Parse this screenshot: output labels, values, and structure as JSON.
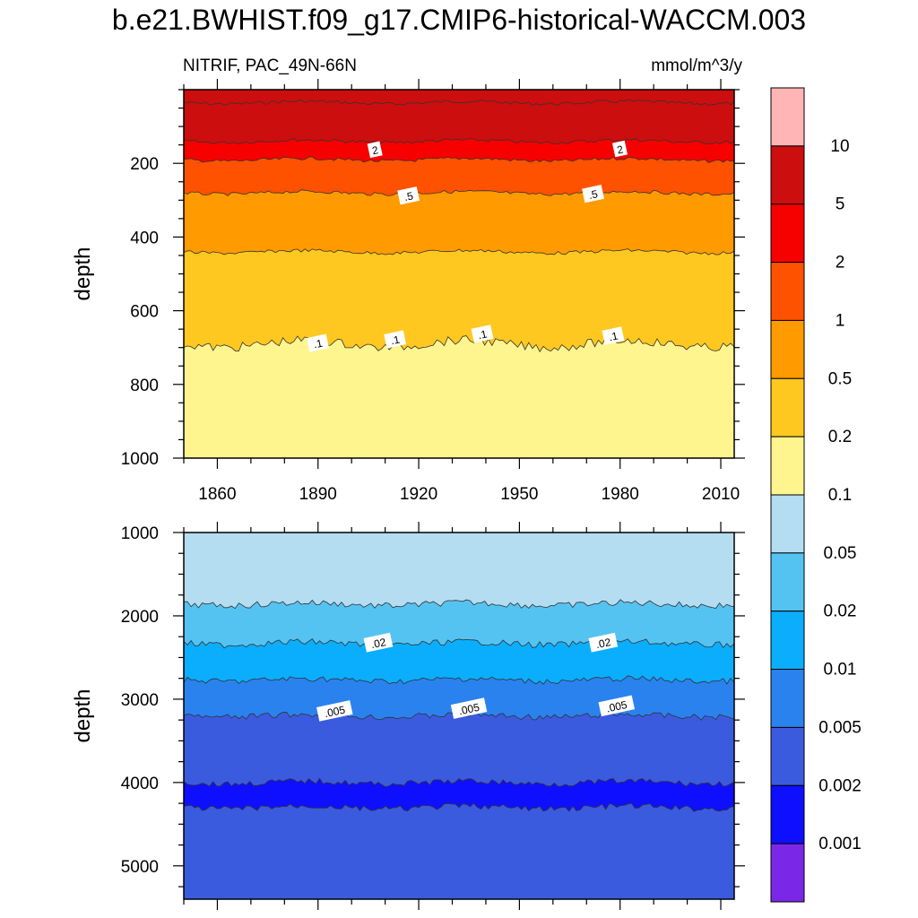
{
  "title": "b.e21.BWHIST.f09_g17.CMIP6-historical-WACCM.003",
  "left_subtitle": "NITRIF, PAC_49N-66N",
  "right_subtitle": "mmol/m^3/y",
  "colors": {
    "levels": [
      "#7b27e8",
      "#0f0fff",
      "#3b5bdf",
      "#2a82ee",
      "#0aaefc",
      "#55c3f1",
      "#b4ddf2",
      "#fff58f",
      "#ffc820",
      "#ff9a00",
      "#ff5200",
      "#f70000",
      "#cc0e0e",
      "#ffb4b6"
    ],
    "line": "#333333"
  },
  "chart_data": [
    {
      "type": "heatmap",
      "subtype": "filled-contour",
      "panel": "upper",
      "xlabel": "",
      "ylabel": "depth",
      "xlim": [
        1850,
        2014
      ],
      "ylim": [
        1000,
        0
      ],
      "x_ticks": [
        1860,
        1890,
        1920,
        1950,
        1980,
        2010
      ],
      "y_ticks": [
        200,
        400,
        600,
        800,
        1000
      ],
      "bands": [
        {
          "from_depth": 0,
          "to_depth": 35,
          "level": "5-10"
        },
        {
          "from_depth": 35,
          "to_depth": 140,
          "level": "5-10"
        },
        {
          "from_depth": 140,
          "to_depth": 190,
          "level": "2-5"
        },
        {
          "from_depth": 190,
          "to_depth": 280,
          "level": "1-2"
        },
        {
          "from_depth": 280,
          "to_depth": 440,
          "level": "0.5-1"
        },
        {
          "from_depth": 440,
          "to_depth": 690,
          "level": "0.2-0.5"
        },
        {
          "from_depth": 690,
          "to_depth": 1000,
          "level": "0.1-0.2"
        }
      ],
      "contour_labels": [
        {
          "text": "2",
          "x": 1907,
          "depth": 165
        },
        {
          "text": "2",
          "x": 1980,
          "depth": 163
        },
        {
          "text": ".5",
          "x": 1917,
          "depth": 290
        },
        {
          "text": ".5",
          "x": 1972,
          "depth": 285
        },
        {
          "text": ".1",
          "x": 1890,
          "depth": 690
        },
        {
          "text": ".1",
          "x": 1913,
          "depth": 680
        },
        {
          "text": ".1",
          "x": 1939,
          "depth": 665
        },
        {
          "text": ".1",
          "x": 1978,
          "depth": 670
        }
      ]
    },
    {
      "type": "heatmap",
      "subtype": "filled-contour",
      "panel": "lower",
      "xlabel": "",
      "ylabel": "depth",
      "xlim": [
        1850,
        2014
      ],
      "ylim": [
        5400,
        1000
      ],
      "y_ticks": [
        1000,
        2000,
        3000,
        4000,
        5000
      ],
      "bands": [
        {
          "from_depth": 1000,
          "to_depth": 1860,
          "level": "0.05-0.1"
        },
        {
          "from_depth": 1860,
          "to_depth": 2330,
          "level": "0.02-0.05"
        },
        {
          "from_depth": 2330,
          "to_depth": 2770,
          "level": "0.01-0.02"
        },
        {
          "from_depth": 2770,
          "to_depth": 3200,
          "level": "0.005-0.01"
        },
        {
          "from_depth": 3200,
          "to_depth": 4000,
          "level": "0.002-0.005"
        },
        {
          "from_depth": 4000,
          "to_depth": 4300,
          "level": "0.001-0.002"
        },
        {
          "from_depth": 4300,
          "to_depth": 5400,
          "level": "0.002-0.005"
        }
      ],
      "contour_labels": [
        {
          "text": ".02",
          "x": 1908,
          "depth": 2330
        },
        {
          "text": ".02",
          "x": 1975,
          "depth": 2330
        },
        {
          "text": ".005",
          "x": 1895,
          "depth": 3150
        },
        {
          "text": ".005",
          "x": 1935,
          "depth": 3120
        },
        {
          "text": ".005",
          "x": 1979,
          "depth": 3090
        }
      ]
    }
  ],
  "colorbar": {
    "labels": [
      "10",
      "5",
      "2",
      "1",
      "0.5",
      "0.2",
      "0.1",
      "0.05",
      "0.02",
      "0.01",
      "0.005",
      "0.002",
      "0.001"
    ]
  }
}
